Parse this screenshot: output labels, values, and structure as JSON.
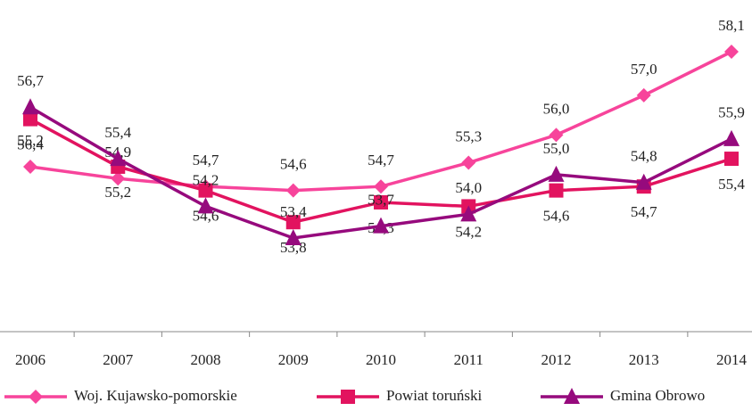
{
  "chart_data": {
    "type": "line",
    "categories": [
      "2006",
      "2007",
      "2008",
      "2009",
      "2010",
      "2011",
      "2012",
      "2013",
      "2014"
    ],
    "series": [
      {
        "name": "Woj. Kujawsko-pomorskie",
        "color": "#f7449b",
        "marker": "diamond",
        "values": [
          55.2,
          54.9,
          54.7,
          54.6,
          54.7,
          55.3,
          56.0,
          57.0,
          58.1
        ],
        "value_labels": [
          "55,2",
          "54,9",
          "54,7",
          "54,6",
          "54,7",
          "55,3",
          "56,0",
          "57,0",
          "58,1"
        ]
      },
      {
        "name": "Powiat toruński",
        "color": "#e2135f",
        "marker": "square",
        "values": [
          56.4,
          55.2,
          54.6,
          53.8,
          54.3,
          54.2,
          54.6,
          54.7,
          55.4
        ],
        "value_labels": [
          "56,4",
          "55,2",
          "54,6",
          "53,8",
          "54,3",
          "54,2",
          "54,6",
          "54,7",
          "55,4"
        ]
      },
      {
        "name": "Gmina Obrowo",
        "color": "#960a7d",
        "marker": "triangle",
        "values": [
          56.7,
          55.4,
          54.2,
          53.4,
          53.7,
          54.0,
          55.0,
          54.8,
          55.9
        ],
        "value_labels": [
          "56,7",
          "55,4",
          "54,2",
          "53,4",
          "53,7",
          "54,0",
          "55,0",
          "54,8",
          "55,9"
        ]
      }
    ]
  }
}
